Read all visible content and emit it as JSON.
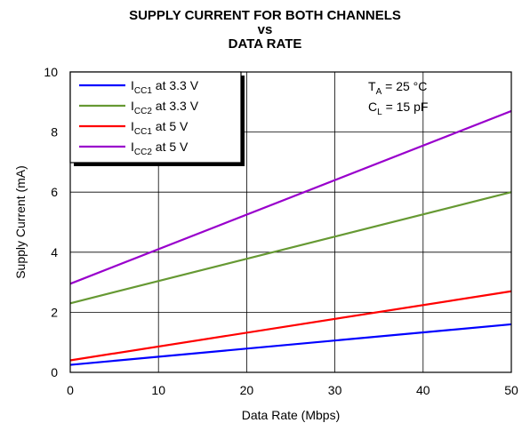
{
  "chart_data": {
    "type": "line",
    "title_lines": [
      "SUPPLY CURRENT FOR BOTH CHANNELS",
      "vs",
      "DATA RATE"
    ],
    "xlabel": "Data Rate (Mbps)",
    "ylabel": "Supply Current (mA)",
    "xlim": [
      0,
      50
    ],
    "ylim": [
      0,
      10
    ],
    "x_ticks": [
      0,
      10,
      20,
      30,
      40,
      50
    ],
    "y_ticks": [
      0,
      2,
      4,
      6,
      8,
      10
    ],
    "grid": true,
    "legend_position": "top-left",
    "annotation": {
      "line1": {
        "main": "T",
        "sub": "A",
        "rest": " = 25 °C"
      },
      "line2": {
        "main": "C",
        "sub": "L",
        "rest": " = 15 pF"
      }
    },
    "series": [
      {
        "name": "ICC1 at 3.3 V",
        "name_main": "I",
        "name_sub": "CC1",
        "name_rest": " at 3.3 V",
        "color": "#0000ff",
        "x": [
          0,
          50
        ],
        "y": [
          0.25,
          1.6
        ]
      },
      {
        "name": "ICC2 at 3.3 V",
        "name_main": "I",
        "name_sub": "CC2",
        "name_rest": " at 3.3 V",
        "color": "#669933",
        "x": [
          0,
          50
        ],
        "y": [
          2.3,
          6.0
        ]
      },
      {
        "name": "ICC1 at 5 V",
        "name_main": "I",
        "name_sub": "CC1",
        "name_rest": " at 5 V",
        "color": "#ff0000",
        "x": [
          0,
          50
        ],
        "y": [
          0.4,
          2.7
        ]
      },
      {
        "name": "ICC2 at 5 V",
        "name_main": "I",
        "name_sub": "CC2",
        "name_rest": " at 5 V",
        "color": "#9900cc",
        "x": [
          0,
          50
        ],
        "y": [
          2.95,
          8.7
        ]
      }
    ]
  }
}
